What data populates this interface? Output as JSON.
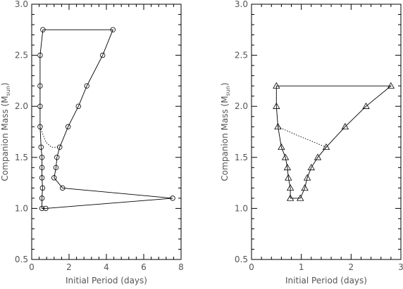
{
  "chart_data": [
    {
      "type": "scatter",
      "marker": "circle",
      "xlabel": "Initial Period (days)",
      "ylabel_main": "Companion Mass (M",
      "ylabel_sub": "sun",
      "ylabel_end": ")",
      "xlim": [
        0,
        8
      ],
      "ylim": [
        0.5,
        3.0
      ],
      "xticks": [
        0,
        2,
        4,
        6,
        8
      ],
      "xtick_labels": [
        "0",
        "2",
        "4",
        "6",
        "8"
      ],
      "yticks": [
        0.5,
        1.0,
        1.5,
        2.0,
        2.5,
        3.0
      ],
      "ytick_labels": [
        "0.5",
        "1.0",
        "1.5",
        "2.0",
        "2.5",
        "3.0"
      ],
      "series": [
        {
          "style": "solid",
          "points": [
            [
              0.75,
              1.0
            ],
            [
              0.55,
              1.0
            ],
            [
              0.55,
              1.1
            ],
            [
              0.58,
              1.2
            ],
            [
              0.55,
              1.3
            ],
            [
              0.55,
              1.4
            ],
            [
              0.55,
              1.5
            ],
            [
              0.5,
              1.6
            ],
            [
              0.45,
              1.8
            ],
            [
              0.45,
              2.0
            ],
            [
              0.45,
              2.2
            ],
            [
              0.45,
              2.5
            ],
            [
              0.6,
              2.75
            ],
            [
              4.35,
              2.75
            ],
            [
              3.8,
              2.5
            ],
            [
              2.95,
              2.2
            ],
            [
              2.5,
              2.0
            ],
            [
              1.95,
              1.8
            ],
            [
              1.5,
              1.6
            ],
            [
              1.35,
              1.5
            ],
            [
              1.3,
              1.4
            ],
            [
              1.2,
              1.3
            ],
            [
              1.65,
              1.2
            ],
            [
              7.55,
              1.1
            ],
            [
              0.75,
              1.0
            ]
          ]
        },
        {
          "style": "dotted",
          "points": [
            [
              0.45,
              1.8
            ],
            [
              0.75,
              1.65
            ],
            [
              1.05,
              1.6
            ],
            [
              1.5,
              1.6
            ]
          ]
        }
      ]
    },
    {
      "type": "scatter",
      "marker": "triangle",
      "xlabel": "Initial Period (days)",
      "ylabel_main": "Companion Mass (M",
      "ylabel_sub": "sun",
      "ylabel_end": ")",
      "xlim": [
        0,
        3
      ],
      "ylim": [
        0.5,
        3.0
      ],
      "xticks": [
        0,
        1,
        2,
        3
      ],
      "xtick_labels": [
        "0",
        "1",
        "2",
        "3"
      ],
      "yticks": [
        0.5,
        1.0,
        1.5,
        2.0,
        2.5,
        3.0
      ],
      "ytick_labels": [
        "0.5",
        "1.0",
        "1.5",
        "2.0",
        "2.5",
        "3.0"
      ],
      "series": [
        {
          "style": "solid",
          "points": [
            [
              0.98,
              1.1
            ],
            [
              0.78,
              1.1
            ],
            [
              0.78,
              1.2
            ],
            [
              0.74,
              1.3
            ],
            [
              0.72,
              1.4
            ],
            [
              0.68,
              1.5
            ],
            [
              0.6,
              1.6
            ],
            [
              0.53,
              1.8
            ],
            [
              0.5,
              2.0
            ],
            [
              0.5,
              2.2
            ],
            [
              2.8,
              2.2
            ],
            [
              2.3,
              2.0
            ],
            [
              1.88,
              1.8
            ],
            [
              1.5,
              1.6
            ],
            [
              1.33,
              1.5
            ],
            [
              1.2,
              1.4
            ],
            [
              1.12,
              1.3
            ],
            [
              1.07,
              1.2
            ],
            [
              0.98,
              1.1
            ]
          ]
        },
        {
          "style": "dotted",
          "points": [
            [
              0.53,
              1.8
            ],
            [
              0.9,
              1.72
            ],
            [
              1.5,
              1.6
            ]
          ]
        }
      ]
    }
  ]
}
